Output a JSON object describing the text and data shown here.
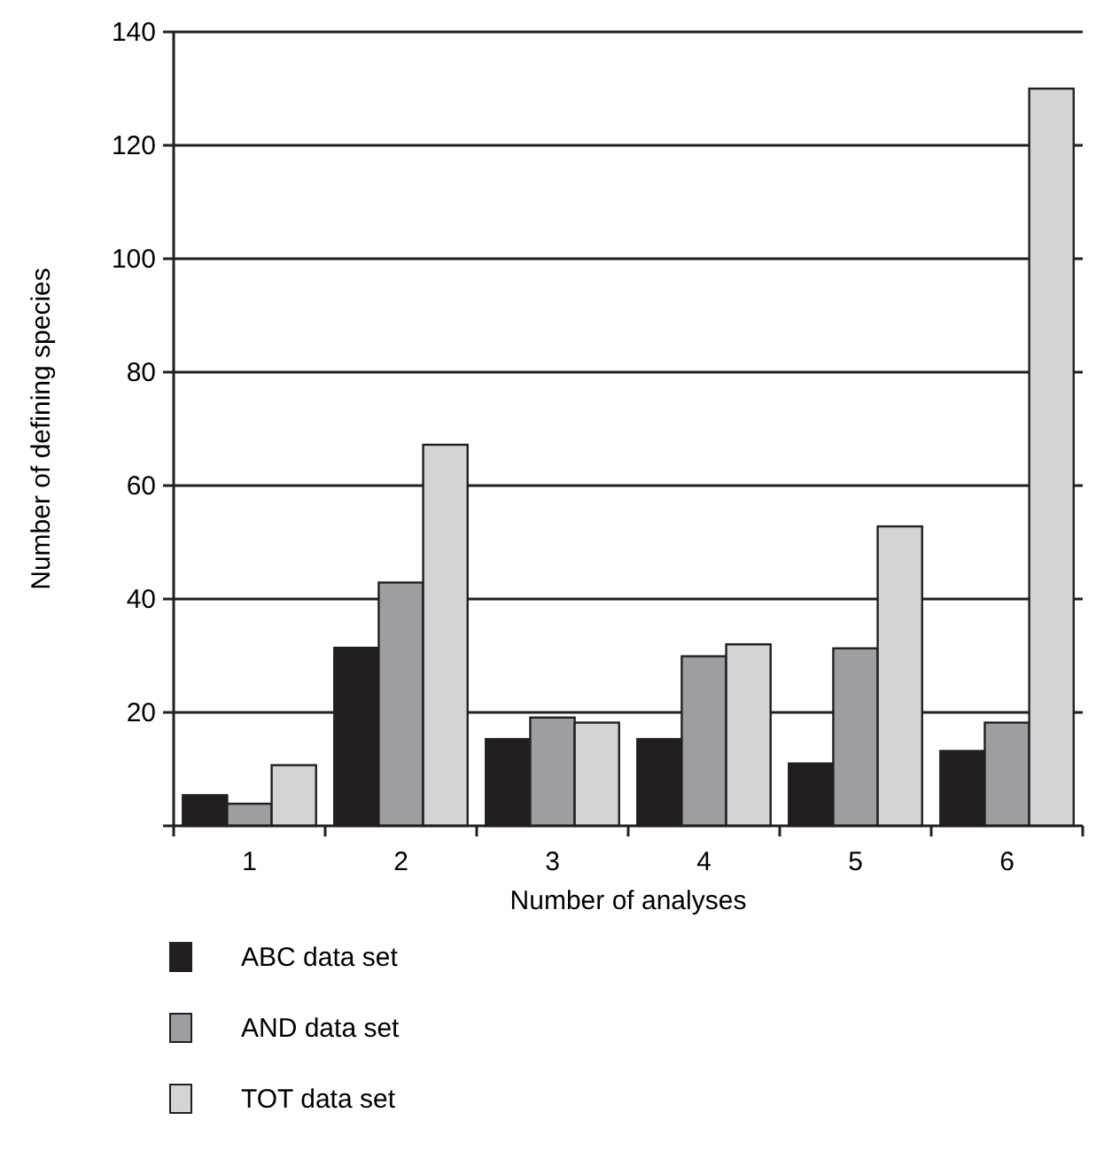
{
  "chart_data": {
    "type": "bar",
    "xlabel": "Number of analyses",
    "ylabel": "Number of defining species",
    "categories": [
      "1",
      "2",
      "3",
      "4",
      "5",
      "6"
    ],
    "series": [
      {
        "name": "ABC data set",
        "color": "#231f20",
        "values": [
          5.4,
          31.4,
          15.3,
          15.3,
          11,
          13.2
        ]
      },
      {
        "name": "AND data set",
        "color": "#9d9ea2",
        "values": [
          3.9,
          42.9,
          19.1,
          29.9,
          31.3,
          18.2
        ]
      },
      {
        "name": "TOT data set",
        "color": "#d3d4d6",
        "values": [
          10.7,
          67.2,
          18.2,
          32,
          52.8,
          130
        ]
      }
    ],
    "ylim": [
      0,
      140
    ],
    "yticks": [
      {
        "value": 0,
        "label": null
      },
      20,
      40,
      60,
      80,
      100,
      120,
      140
    ],
    "grid": "y",
    "legend": "bottom"
  }
}
